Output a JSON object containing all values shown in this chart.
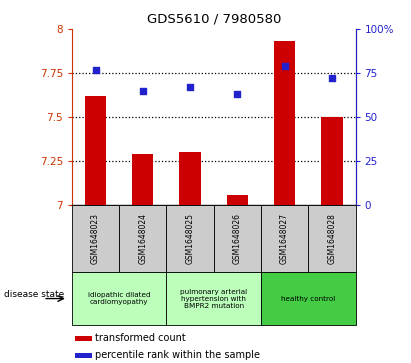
{
  "title": "GDS5610 / 7980580",
  "samples": [
    "GSM1648023",
    "GSM1648024",
    "GSM1648025",
    "GSM1648026",
    "GSM1648027",
    "GSM1648028"
  ],
  "transformed_count": [
    7.62,
    7.29,
    7.3,
    7.06,
    7.93,
    7.5
  ],
  "percentile_rank": [
    77,
    65,
    67,
    63,
    79,
    72
  ],
  "ylim_left": [
    7,
    8
  ],
  "ylim_right": [
    0,
    100
  ],
  "yticks_left": [
    7,
    7.25,
    7.5,
    7.75,
    8
  ],
  "yticks_right": [
    0,
    25,
    50,
    75,
    100
  ],
  "bar_color": "#cc0000",
  "dot_color": "#2222cc",
  "bar_bottom": 7,
  "group_labels": [
    "idiopathic dilated\ncardiomyopathy",
    "pulmonary arterial\nhypertension with\nBMPR2 mutation",
    "healthy control"
  ],
  "group_colors": [
    "#bbffbb",
    "#bbffbb",
    "#44cc44"
  ],
  "group_ranges": [
    [
      0,
      2
    ],
    [
      2,
      4
    ],
    [
      4,
      6
    ]
  ],
  "disease_state_label": "disease state",
  "legend_bar_label": "transformed count",
  "legend_dot_label": "percentile rank within the sample",
  "sample_box_color": "#cccccc",
  "left_tick_color": "#cc3300",
  "right_tick_color": "#2222cc"
}
